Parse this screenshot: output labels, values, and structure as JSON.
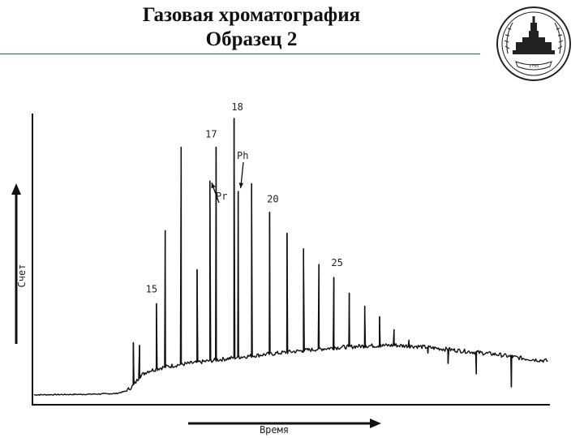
{
  "title": {
    "line1": "Газовая хроматография",
    "line2": "Образец 2"
  },
  "emblem": {
    "icon": "university-emblem-icon",
    "year": "1755"
  },
  "chart_data": {
    "type": "line",
    "title": "Газовая хроматография — Образец 2",
    "xlabel": "Время",
    "ylabel": "Счет",
    "xlim": [
      0,
      100
    ],
    "ylim": [
      0,
      100
    ],
    "grid": false,
    "legend": "none",
    "line_color": "#111111",
    "baseline": [
      [
        0,
        1
      ],
      [
        10,
        1.2
      ],
      [
        16,
        1.5
      ],
      [
        18,
        2.5
      ],
      [
        19.5,
        5
      ],
      [
        20.5,
        8
      ],
      [
        22,
        10
      ],
      [
        25,
        11.5
      ],
      [
        28,
        12.5
      ],
      [
        32,
        13.5
      ],
      [
        36,
        14.5
      ],
      [
        40,
        15.5
      ],
      [
        45,
        16.5
      ],
      [
        50,
        17.5
      ],
      [
        55,
        18.5
      ],
      [
        60,
        19.3
      ],
      [
        65,
        19.8
      ],
      [
        70,
        20
      ],
      [
        75,
        19.5
      ],
      [
        80,
        18.5
      ],
      [
        85,
        17.5
      ],
      [
        90,
        16.5
      ],
      [
        95,
        15
      ],
      [
        100,
        14
      ]
    ],
    "peaks": [
      {
        "x": 19.3,
        "y": 21
      },
      {
        "x": 20.5,
        "y": 20
      },
      {
        "x": 23.8,
        "y": 36
      },
      {
        "x": 25.5,
        "y": 64
      },
      {
        "x": 28.6,
        "y": 96
      },
      {
        "x": 31.7,
        "y": 49
      },
      {
        "x": 34.2,
        "y": 83,
        "label": "Pr"
      },
      {
        "x": 35.4,
        "y": 96,
        "label": "17"
      },
      {
        "x": 38.9,
        "y": 107,
        "label": "18"
      },
      {
        "x": 39.7,
        "y": 79,
        "label": "Ph"
      },
      {
        "x": 42.3,
        "y": 82
      },
      {
        "x": 45.8,
        "y": 71,
        "label": "20"
      },
      {
        "x": 49.2,
        "y": 63
      },
      {
        "x": 52.4,
        "y": 57
      },
      {
        "x": 55.4,
        "y": 51
      },
      {
        "x": 58.3,
        "y": 46,
        "label": "25"
      },
      {
        "x": 61.3,
        "y": 40
      },
      {
        "x": 64.3,
        "y": 35
      },
      {
        "x": 67.2,
        "y": 31
      },
      {
        "x": 70.0,
        "y": 26
      },
      {
        "x": 72.9,
        "y": 22
      },
      {
        "x": 76.6,
        "y": 17
      },
      {
        "x": 80.5,
        "y": 13
      },
      {
        "x": 86.0,
        "y": 9
      },
      {
        "x": 92.8,
        "y": 4
      }
    ],
    "labels": [
      {
        "text": "15",
        "x": 23.8,
        "y": 36
      },
      {
        "text": "17",
        "x": 35.4,
        "y": 96
      },
      {
        "text": "18",
        "x": 38.9,
        "y": 107
      },
      {
        "text": "Ph",
        "x": 39.7,
        "y": 79
      },
      {
        "text": "Pr",
        "x": 34.2,
        "y": 83
      },
      {
        "text": "20",
        "x": 45.8,
        "y": 71
      },
      {
        "text": "25",
        "x": 58.3,
        "y": 46
      }
    ]
  }
}
